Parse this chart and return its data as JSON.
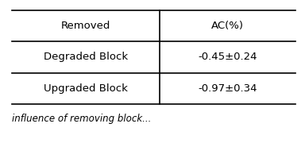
{
  "col_headers": [
    "Removed",
    "AC(%)"
  ],
  "rows": [
    [
      "Degraded Block",
      "-0.45±0.24"
    ],
    [
      "Upgraded Block",
      "-0.97±0.34"
    ]
  ],
  "background_color": "#ffffff",
  "line_color": "#000000",
  "font_size": 9.5,
  "col_split": 0.52,
  "caption_text": "influence of removing block...",
  "caption_fontsize": 8.5
}
